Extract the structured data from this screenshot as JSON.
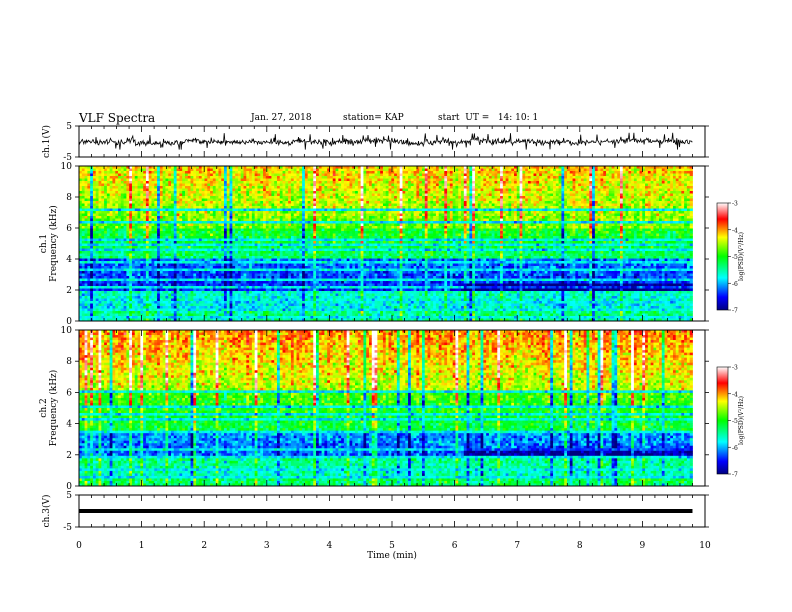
{
  "header": {
    "title": "VLF Spectra",
    "date": "Jan. 27, 2018",
    "station": "station= KAP",
    "start_time": "start  UT =   14: 10: 1"
  },
  "chart_data": [
    {
      "type": "line",
      "name": "ch1-waveform",
      "ylabel": "ch.1(V)",
      "ylim": [
        -5,
        5
      ],
      "yticks": [
        -5,
        5
      ],
      "xlim": [
        0,
        10
      ],
      "x_end": 9.8,
      "amplitude_band": [
        -2.6,
        2.8
      ],
      "color": "#000000"
    },
    {
      "type": "heatmap",
      "name": "ch1-spectrogram",
      "ylabel": "ch.1\nFrequency (kHz)",
      "ylim": [
        0,
        10
      ],
      "yticks": [
        0,
        2,
        4,
        6,
        8,
        10
      ],
      "xlim": [
        0,
        10
      ],
      "x_end": 9.8,
      "colorbar": {
        "label": "log(PSD)(V²/Hz)",
        "range": [
          -7,
          -3
        ],
        "ticks": [
          -3,
          -4,
          -5,
          -6,
          -7
        ]
      },
      "background_level": -5.2,
      "quiet_band_khz": [
        2.0,
        4.0
      ],
      "horizontal_lines_khz": [
        0.3,
        0.8,
        1.2,
        2.1,
        2.6,
        3.3,
        3.8,
        4.6,
        5.0,
        5.3,
        6.3,
        7.2
      ],
      "feature_shift_minute": 6.15
    },
    {
      "type": "heatmap",
      "name": "ch2-spectrogram",
      "ylabel": "ch.2\nFrequency (kHz)",
      "ylim": [
        0,
        10
      ],
      "yticks": [
        0,
        2,
        4,
        6,
        8,
        10
      ],
      "xlim": [
        0,
        10
      ],
      "x_end": 9.8,
      "colorbar": {
        "label": "log(PSD)(V²/Hz)",
        "range": [
          -7,
          -3
        ],
        "ticks": [
          -3,
          -4,
          -5,
          -6,
          -7
        ]
      },
      "background_level": -5.0,
      "quiet_band_khz": [
        2.0,
        3.5
      ],
      "horizontal_lines_khz": [
        0.5,
        1.0,
        1.8,
        2.4,
        3.5,
        4.2,
        4.6,
        5.1,
        6.1
      ],
      "feature_shift_minute": 6.15
    },
    {
      "type": "line",
      "name": "ch3-waveform",
      "ylabel": "ch.3(V)",
      "ylim": [
        -5,
        5
      ],
      "yticks": [
        -5,
        5
      ],
      "xlim": [
        0,
        10
      ],
      "x_end": 9.8,
      "constant_value": 0,
      "xlabel": "Time (min)",
      "xticks": [
        0,
        1,
        2,
        3,
        4,
        5,
        6,
        7,
        8,
        9,
        10
      ],
      "color": "#000000"
    }
  ]
}
